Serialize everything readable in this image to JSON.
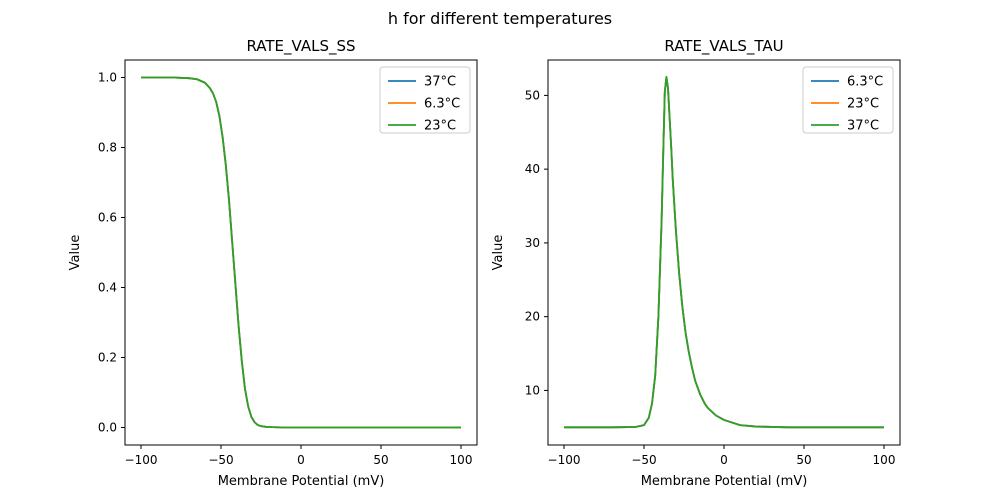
{
  "figure": {
    "title": "h for different temperatures"
  },
  "chart_data": [
    {
      "type": "line",
      "title": "RATE_VALS_SS",
      "xlabel": "Membrane Potential (mV)",
      "ylabel": "Value",
      "xlim": [
        -110,
        110
      ],
      "ylim": [
        -0.05,
        1.05
      ],
      "xticks": [
        -100,
        -50,
        0,
        50,
        100
      ],
      "yticks": [
        0.0,
        0.2,
        0.4,
        0.6,
        0.8,
        1.0
      ],
      "ytick_labels": [
        "0.0",
        "0.2",
        "0.4",
        "0.6",
        "0.8",
        "1.0"
      ],
      "grid": false,
      "legend_position": "top-right",
      "x": [
        -100,
        -90,
        -80,
        -70,
        -65,
        -60,
        -57,
        -55,
        -53,
        -51,
        -49,
        -47,
        -45,
        -43,
        -41,
        -39,
        -37,
        -35,
        -33,
        -31,
        -29,
        -27,
        -25,
        -22,
        -18,
        -10,
        0,
        20,
        50,
        100
      ],
      "series": [
        {
          "name": "37°C",
          "color": "#1f77b4",
          "values": [
            1.0,
            1.0,
            1.0,
            0.998,
            0.995,
            0.985,
            0.97,
            0.955,
            0.93,
            0.89,
            0.83,
            0.75,
            0.65,
            0.53,
            0.41,
            0.29,
            0.19,
            0.11,
            0.06,
            0.03,
            0.015,
            0.007,
            0.004,
            0.002,
            0.001,
            0.0,
            0.0,
            0.0,
            0.0,
            0.0
          ]
        },
        {
          "name": "6.3°C",
          "color": "#ff7f0e",
          "values": [
            1.0,
            1.0,
            1.0,
            0.998,
            0.995,
            0.985,
            0.97,
            0.955,
            0.93,
            0.89,
            0.83,
            0.75,
            0.65,
            0.53,
            0.41,
            0.29,
            0.19,
            0.11,
            0.06,
            0.03,
            0.015,
            0.007,
            0.004,
            0.002,
            0.001,
            0.0,
            0.0,
            0.0,
            0.0,
            0.0
          ]
        },
        {
          "name": "23°C",
          "color": "#2ca02c",
          "values": [
            1.0,
            1.0,
            1.0,
            0.998,
            0.995,
            0.985,
            0.97,
            0.955,
            0.93,
            0.89,
            0.83,
            0.75,
            0.65,
            0.53,
            0.41,
            0.29,
            0.19,
            0.11,
            0.06,
            0.03,
            0.015,
            0.007,
            0.004,
            0.002,
            0.001,
            0.0,
            0.0,
            0.0,
            0.0,
            0.0
          ]
        }
      ]
    },
    {
      "type": "line",
      "title": "RATE_VALS_TAU",
      "xlabel": "Membrane Potential (mV)",
      "ylabel": "Value",
      "xlim": [
        -110,
        110
      ],
      "ylim": [
        2.6,
        54.8
      ],
      "xticks": [
        -100,
        -50,
        0,
        50,
        100
      ],
      "yticks": [
        10,
        20,
        30,
        40,
        50
      ],
      "ytick_labels": [
        "10",
        "20",
        "30",
        "40",
        "50"
      ],
      "grid": false,
      "legend_position": "top-right",
      "x": [
        -100,
        -70,
        -55,
        -50,
        -47,
        -45,
        -43,
        -41,
        -39,
        -38,
        -37,
        -36,
        -35,
        -34,
        -33,
        -32,
        -30,
        -28,
        -26,
        -24,
        -22,
        -20,
        -18,
        -15,
        -12,
        -10,
        -5,
        0,
        10,
        20,
        40,
        100
      ],
      "series": [
        {
          "name": "6.3°C",
          "color": "#1f77b4",
          "values": [
            5.0,
            5.0,
            5.05,
            5.3,
            6.3,
            8.2,
            12.0,
            20.0,
            33.0,
            42.0,
            50.5,
            52.5,
            51.0,
            47.0,
            43.0,
            38.5,
            31.5,
            25.8,
            21.3,
            17.8,
            15.2,
            13.1,
            11.3,
            9.5,
            8.2,
            7.6,
            6.6,
            6.0,
            5.3,
            5.1,
            5.0,
            5.0
          ]
        },
        {
          "name": "23°C",
          "color": "#ff7f0e",
          "values": [
            5.0,
            5.0,
            5.05,
            5.3,
            6.3,
            8.2,
            12.0,
            20.0,
            33.0,
            42.0,
            50.5,
            52.5,
            51.0,
            47.0,
            43.0,
            38.5,
            31.5,
            25.8,
            21.3,
            17.8,
            15.2,
            13.1,
            11.3,
            9.5,
            8.2,
            7.6,
            6.6,
            6.0,
            5.3,
            5.1,
            5.0,
            5.0
          ]
        },
        {
          "name": "37°C",
          "color": "#2ca02c",
          "values": [
            5.0,
            5.0,
            5.05,
            5.3,
            6.3,
            8.2,
            12.0,
            20.0,
            33.0,
            42.0,
            50.5,
            52.5,
            51.0,
            47.0,
            43.0,
            38.5,
            31.5,
            25.8,
            21.3,
            17.8,
            15.2,
            13.1,
            11.3,
            9.5,
            8.2,
            7.6,
            6.6,
            6.0,
            5.3,
            5.1,
            5.0,
            5.0
          ]
        }
      ]
    }
  ]
}
